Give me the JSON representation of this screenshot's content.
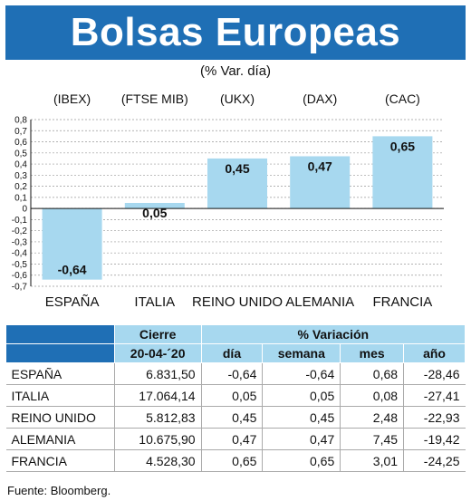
{
  "header": {
    "title": "Bolsas Europeas",
    "subtitle": "(% Var. día)"
  },
  "colors": {
    "banner": "#1f6fb5",
    "bar": "#a7d8ef",
    "header_light": "#a7d8ef"
  },
  "chart_data": {
    "type": "bar",
    "categories": [
      "ESPAÑA",
      "ITALIA",
      "REINO UNIDO",
      "ALEMANIA",
      "FRANCIA"
    ],
    "index_labels": [
      "(IBEX)",
      "(FTSE MIB)",
      "(UKX)",
      "(DAX)",
      "(CAC)"
    ],
    "values": [
      -0.64,
      0.05,
      0.45,
      0.47,
      0.65
    ],
    "value_labels": [
      "-0,64",
      "0,05",
      "0,45",
      "0,47",
      "0,65"
    ],
    "ylim": [
      -0.7,
      0.8
    ],
    "yticks": [
      "0,8",
      "0,7",
      "0,6",
      "0,5",
      "0,4",
      "0,3",
      "0,2",
      "0,1",
      "0",
      "-0,1",
      "-0,2",
      "-0,3",
      "-0,4",
      "-0,5",
      "-0,6",
      "-0,7"
    ],
    "grid": true
  },
  "table": {
    "header_top": {
      "cierre": "Cierre",
      "variacion": "% Variación"
    },
    "header_bottom": {
      "fecha": "20-04-´20",
      "dia": "día",
      "semana": "semana",
      "mes": "mes",
      "anio": "año"
    },
    "rows": [
      {
        "name": "ESPAÑA",
        "cierre": "6.831,50",
        "dia": "-0,64",
        "semana": "-0,64",
        "mes": "0,68",
        "anio": "-28,46"
      },
      {
        "name": "ITALIA",
        "cierre": "17.064,14",
        "dia": "0,05",
        "semana": "0,05",
        "mes": "0,08",
        "anio": "-27,41"
      },
      {
        "name": "REINO UNIDO",
        "cierre": "5.812,83",
        "dia": "0,45",
        "semana": "0,45",
        "mes": "2,48",
        "anio": "-22,93"
      },
      {
        "name": "ALEMANIA",
        "cierre": "10.675,90",
        "dia": "0,47",
        "semana": "0,47",
        "mes": "7,45",
        "anio": "-19,42"
      },
      {
        "name": "FRANCIA",
        "cierre": "4.528,30",
        "dia": "0,65",
        "semana": "0,65",
        "mes": "3,01",
        "anio": "-24,25"
      }
    ]
  },
  "source": "Fuente: Bloomberg."
}
